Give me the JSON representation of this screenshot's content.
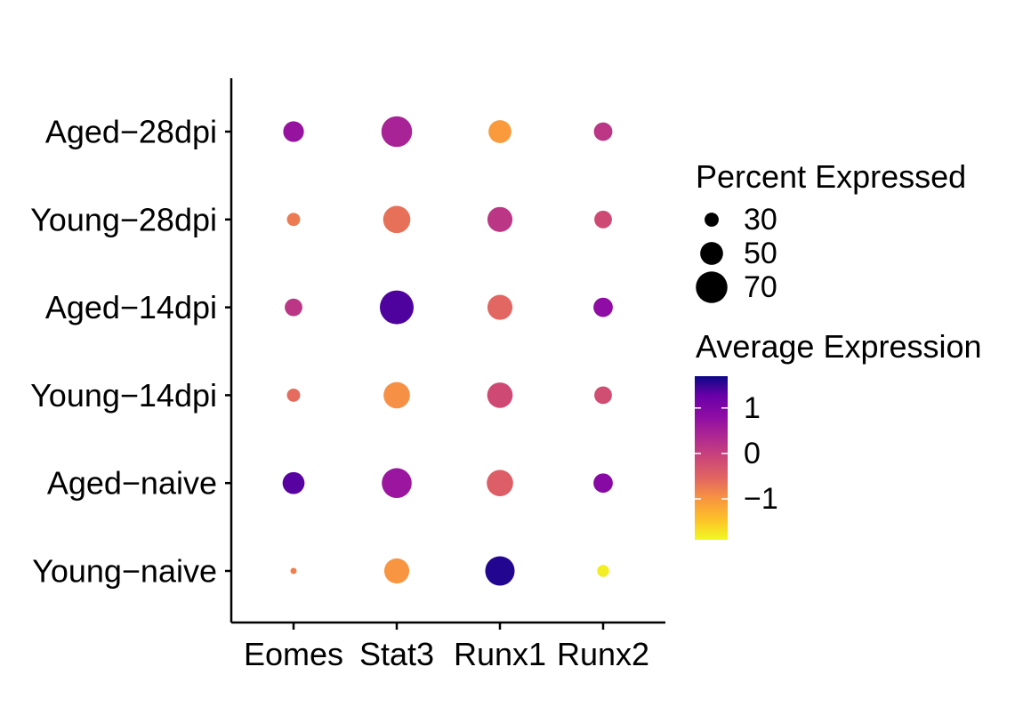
{
  "chart_data": {
    "type": "dotplot",
    "x_categories": [
      "Eomes",
      "Stat3",
      "Runx1",
      "Runx2"
    ],
    "y_categories": [
      "Aged−28dpi",
      "Young−28dpi",
      "Aged−14dpi",
      "Young−14dpi",
      "Aged−naive",
      "Young−naive"
    ],
    "points": [
      {
        "gene": "Eomes",
        "group": "Aged−28dpi",
        "pct": 45,
        "avg": 0.7
      },
      {
        "gene": "Stat3",
        "group": "Aged−28dpi",
        "pct": 68,
        "avg": 0.45
      },
      {
        "gene": "Runx1",
        "group": "Aged−28dpi",
        "pct": 50,
        "avg": -1.05
      },
      {
        "gene": "Runx2",
        "group": "Aged−28dpi",
        "pct": 40,
        "avg": 0.15
      },
      {
        "gene": "Eomes",
        "group": "Young−28dpi",
        "pct": 28,
        "avg": -0.75
      },
      {
        "gene": "Stat3",
        "group": "Young−28dpi",
        "pct": 60,
        "avg": -0.65
      },
      {
        "gene": "Runx1",
        "group": "Young−28dpi",
        "pct": 55,
        "avg": 0.15
      },
      {
        "gene": "Runx2",
        "group": "Young−28dpi",
        "pct": 38,
        "avg": -0.15
      },
      {
        "gene": "Eomes",
        "group": "Aged−14dpi",
        "pct": 38,
        "avg": 0.15
      },
      {
        "gene": "Stat3",
        "group": "Aged−14dpi",
        "pct": 75,
        "avg": 1.4
      },
      {
        "gene": "Runx1",
        "group": "Aged−14dpi",
        "pct": 55,
        "avg": -0.55
      },
      {
        "gene": "Runx2",
        "group": "Aged−14dpi",
        "pct": 42,
        "avg": 0.8
      },
      {
        "gene": "Eomes",
        "group": "Young−14dpi",
        "pct": 28,
        "avg": -0.6
      },
      {
        "gene": "Stat3",
        "group": "Young−14dpi",
        "pct": 58,
        "avg": -0.95
      },
      {
        "gene": "Runx1",
        "group": "Young−14dpi",
        "pct": 56,
        "avg": -0.15
      },
      {
        "gene": "Runx2",
        "group": "Young−14dpi",
        "pct": 38,
        "avg": -0.2
      },
      {
        "gene": "Eomes",
        "group": "Aged−naive",
        "pct": 48,
        "avg": 1.35
      },
      {
        "gene": "Stat3",
        "group": "Aged−naive",
        "pct": 66,
        "avg": 0.65
      },
      {
        "gene": "Runx1",
        "group": "Aged−naive",
        "pct": 58,
        "avg": -0.45
      },
      {
        "gene": "Runx2",
        "group": "Aged−naive",
        "pct": 42,
        "avg": 0.9
      },
      {
        "gene": "Eomes",
        "group": "Young−naive",
        "pct": 12,
        "avg": -0.8
      },
      {
        "gene": "Stat3",
        "group": "Young−naive",
        "pct": 55,
        "avg": -1.0
      },
      {
        "gene": "Runx1",
        "group": "Young−naive",
        "pct": 65,
        "avg": 1.6
      },
      {
        "gene": "Runx2",
        "group": "Young−naive",
        "pct": 25,
        "avg": -1.8
      }
    ],
    "size_legend": {
      "title": "Percent Expressed",
      "values": [
        30,
        50,
        70
      ],
      "labels": [
        "30",
        "50",
        "70"
      ]
    },
    "color_legend": {
      "title": "Average Expression",
      "min": -1.9,
      "max": 1.7,
      "ticks": [
        1,
        0,
        -1
      ],
      "tick_labels": [
        "1",
        "0",
        "−1"
      ],
      "colormap": "plasma"
    },
    "grid": false,
    "legend_position": "right"
  }
}
